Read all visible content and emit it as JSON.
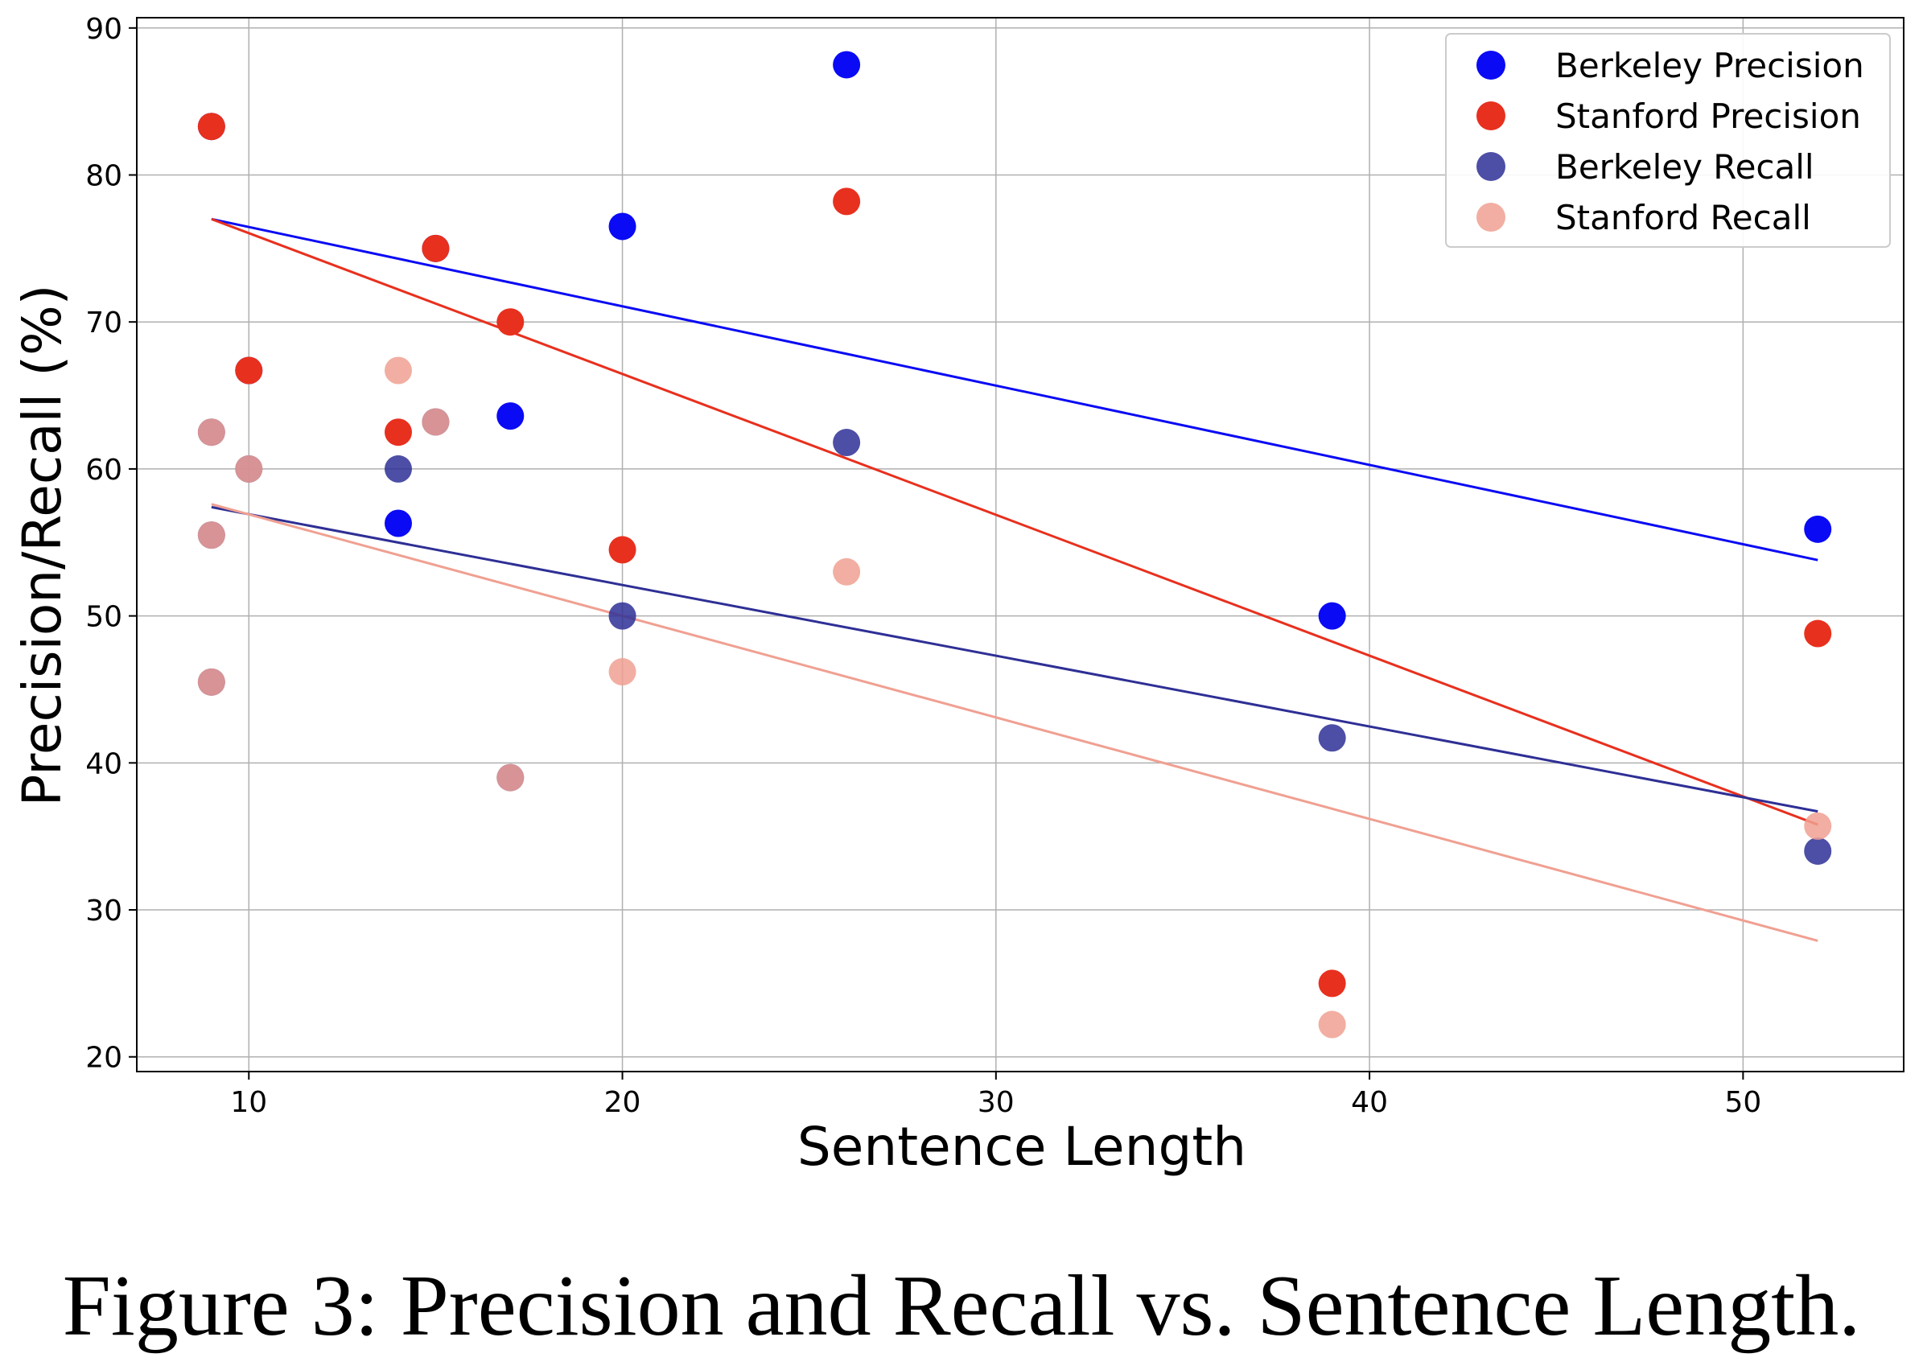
{
  "caption": "Figure 3: Precision and Recall vs. Sentence Length.",
  "chart_data": {
    "type": "scatter",
    "title": "",
    "xlabel": "Sentence Length",
    "ylabel": "Precision/Recall (%)",
    "xlim": [
      7,
      54.3
    ],
    "ylim": [
      19,
      90.7
    ],
    "xticks": [
      10,
      20,
      30,
      40,
      50
    ],
    "yticks": [
      20,
      30,
      40,
      50,
      60,
      70,
      80,
      90
    ],
    "grid": true,
    "legend_position": "top-right",
    "series": [
      {
        "name": "Berkeley Precision",
        "color": "#0a0af5",
        "opacity": 1.0,
        "x": [
          9,
          10,
          14,
          15,
          17,
          20,
          26,
          39,
          52
        ],
        "y": [
          83.3,
          66.7,
          56.3,
          75.0,
          63.6,
          76.5,
          87.5,
          50.0,
          55.9
        ],
        "trend": [
          [
            9,
            77.0
          ],
          [
            52,
            53.8
          ]
        ]
      },
      {
        "name": "Stanford Precision",
        "color": "#e8301e",
        "opacity": 1.0,
        "x": [
          9,
          10,
          14,
          15,
          17,
          20,
          26,
          39,
          52
        ],
        "y": [
          83.3,
          66.7,
          62.5,
          75.0,
          70.0,
          54.5,
          78.2,
          25.0,
          48.8
        ],
        "trend": [
          [
            9,
            77.0
          ],
          [
            52,
            35.8
          ]
        ]
      },
      {
        "name": "Berkeley Recall",
        "color": "#2e2f95",
        "opacity": 0.85,
        "x": [
          9,
          9,
          9,
          10,
          14,
          15,
          17,
          20,
          26,
          39,
          52
        ],
        "y": [
          62.5,
          55.5,
          45.5,
          60.0,
          60.0,
          63.2,
          39.0,
          50.0,
          61.8,
          41.7,
          34.0
        ],
        "trend": [
          [
            9,
            57.4
          ],
          [
            52,
            36.7
          ]
        ]
      },
      {
        "name": "Stanford Recall",
        "color": "#f0a092",
        "opacity": 0.85,
        "x": [
          9,
          9,
          9,
          10,
          14,
          15,
          17,
          20,
          26,
          39,
          52
        ],
        "y": [
          62.5,
          55.5,
          45.5,
          60.0,
          66.7,
          63.2,
          39.0,
          46.2,
          53.0,
          22.2,
          35.7
        ],
        "trend": [
          [
            9,
            57.6
          ],
          [
            52,
            27.9
          ]
        ]
      }
    ]
  }
}
